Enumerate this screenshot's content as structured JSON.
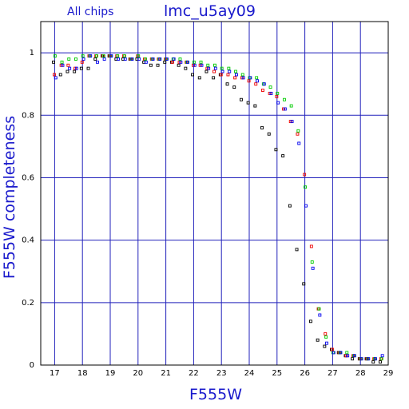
{
  "header": {
    "left": "All chips",
    "title": "lmc_u5ay09"
  },
  "chart_data": {
    "type": "scatter",
    "xlabel": "F555W",
    "ylabel": "F555W completeness",
    "xlim": [
      16.5,
      29
    ],
    "ylim": [
      0,
      1.1
    ],
    "x_ticks": [
      "17",
      "18",
      "19",
      "20",
      "21",
      "22",
      "23",
      "24",
      "25",
      "26",
      "27",
      "28",
      "29"
    ],
    "y_ticks": [
      "0",
      "0.2",
      "0.4",
      "0.6",
      "0.8",
      "1"
    ],
    "grid": true,
    "series": [
      {
        "color": "#000000",
        "points": [
          [
            17.0,
            0.97
          ],
          [
            17.25,
            0.93
          ],
          [
            17.5,
            0.94
          ],
          [
            17.75,
            0.94
          ],
          [
            18.0,
            0.95
          ],
          [
            18.25,
            0.95
          ],
          [
            18.5,
            0.98
          ],
          [
            18.75,
            0.99
          ],
          [
            19.0,
            0.99
          ],
          [
            19.25,
            0.98
          ],
          [
            19.5,
            0.98
          ],
          [
            19.75,
            0.98
          ],
          [
            20.0,
            0.98
          ],
          [
            20.25,
            0.97
          ],
          [
            20.5,
            0.96
          ],
          [
            20.75,
            0.96
          ],
          [
            21.0,
            0.97
          ],
          [
            21.25,
            0.97
          ],
          [
            21.5,
            0.96
          ],
          [
            21.75,
            0.95
          ],
          [
            22.0,
            0.93
          ],
          [
            22.25,
            0.92
          ],
          [
            22.5,
            0.94
          ],
          [
            22.75,
            0.92
          ],
          [
            23.0,
            0.93
          ],
          [
            23.25,
            0.9
          ],
          [
            23.5,
            0.89
          ],
          [
            23.75,
            0.85
          ],
          [
            24.0,
            0.84
          ],
          [
            24.25,
            0.83
          ],
          [
            24.5,
            0.76
          ],
          [
            24.75,
            0.74
          ],
          [
            25.0,
            0.69
          ],
          [
            25.25,
            0.67
          ],
          [
            25.5,
            0.51
          ],
          [
            25.75,
            0.37
          ],
          [
            26.0,
            0.26
          ],
          [
            26.25,
            0.14
          ],
          [
            26.5,
            0.08
          ],
          [
            26.75,
            0.06
          ],
          [
            27.0,
            0.05
          ],
          [
            27.25,
            0.04
          ],
          [
            27.5,
            0.03
          ],
          [
            27.75,
            0.02
          ],
          [
            28.0,
            0.02
          ],
          [
            28.25,
            0.02
          ],
          [
            28.5,
            0.01
          ],
          [
            28.75,
            0.01
          ]
        ]
      },
      {
        "color": "#ee0000",
        "points": [
          [
            17.0,
            0.93
          ],
          [
            17.25,
            0.96
          ],
          [
            17.5,
            0.96
          ],
          [
            17.75,
            0.95
          ],
          [
            18.0,
            0.97
          ],
          [
            18.25,
            0.99
          ],
          [
            18.5,
            0.99
          ],
          [
            18.75,
            0.99
          ],
          [
            19.0,
            0.99
          ],
          [
            19.25,
            0.99
          ],
          [
            19.5,
            0.99
          ],
          [
            19.75,
            0.98
          ],
          [
            20.0,
            0.99
          ],
          [
            20.25,
            0.98
          ],
          [
            20.5,
            0.98
          ],
          [
            20.75,
            0.98
          ],
          [
            21.0,
            0.98
          ],
          [
            21.25,
            0.97
          ],
          [
            21.5,
            0.97
          ],
          [
            21.75,
            0.97
          ],
          [
            22.0,
            0.96
          ],
          [
            22.25,
            0.96
          ],
          [
            22.5,
            0.95
          ],
          [
            22.75,
            0.94
          ],
          [
            23.0,
            0.93
          ],
          [
            23.25,
            0.93
          ],
          [
            23.5,
            0.92
          ],
          [
            23.75,
            0.92
          ],
          [
            24.0,
            0.91
          ],
          [
            24.25,
            0.9
          ],
          [
            24.5,
            0.88
          ],
          [
            24.75,
            0.87
          ],
          [
            25.0,
            0.86
          ],
          [
            25.25,
            0.82
          ],
          [
            25.5,
            0.78
          ],
          [
            25.75,
            0.74
          ],
          [
            26.0,
            0.61
          ],
          [
            26.25,
            0.38
          ],
          [
            26.5,
            0.18
          ],
          [
            26.75,
            0.1
          ],
          [
            27.0,
            0.05
          ],
          [
            27.25,
            0.04
          ],
          [
            27.5,
            0.03
          ],
          [
            27.75,
            0.03
          ],
          [
            28.0,
            0.02
          ],
          [
            28.25,
            0.02
          ],
          [
            28.5,
            0.02
          ],
          [
            28.75,
            0.02
          ]
        ]
      },
      {
        "color": "#00cc00",
        "points": [
          [
            17.0,
            0.99
          ],
          [
            17.25,
            0.97
          ],
          [
            17.5,
            0.98
          ],
          [
            17.75,
            0.98
          ],
          [
            18.0,
            0.99
          ],
          [
            18.25,
            0.99
          ],
          [
            18.5,
            0.99
          ],
          [
            18.75,
            0.99
          ],
          [
            19.0,
            0.99
          ],
          [
            19.25,
            0.99
          ],
          [
            19.5,
            0.99
          ],
          [
            19.75,
            0.98
          ],
          [
            20.0,
            0.99
          ],
          [
            20.25,
            0.98
          ],
          [
            20.5,
            0.98
          ],
          [
            20.75,
            0.98
          ],
          [
            21.0,
            0.98
          ],
          [
            21.25,
            0.98
          ],
          [
            21.5,
            0.98
          ],
          [
            21.75,
            0.97
          ],
          [
            22.0,
            0.97
          ],
          [
            22.25,
            0.97
          ],
          [
            22.5,
            0.96
          ],
          [
            22.75,
            0.96
          ],
          [
            23.0,
            0.95
          ],
          [
            23.25,
            0.95
          ],
          [
            23.5,
            0.94
          ],
          [
            23.75,
            0.93
          ],
          [
            24.0,
            0.92
          ],
          [
            24.25,
            0.92
          ],
          [
            24.5,
            0.9
          ],
          [
            24.75,
            0.89
          ],
          [
            25.0,
            0.87
          ],
          [
            25.25,
            0.85
          ],
          [
            25.5,
            0.83
          ],
          [
            25.75,
            0.75
          ],
          [
            26.0,
            0.57
          ],
          [
            26.25,
            0.33
          ],
          [
            26.5,
            0.18
          ],
          [
            26.75,
            0.09
          ],
          [
            27.0,
            0.04
          ],
          [
            27.25,
            0.04
          ],
          [
            27.5,
            0.04
          ],
          [
            27.75,
            0.03
          ],
          [
            28.0,
            0.02
          ],
          [
            28.25,
            0.02
          ],
          [
            28.5,
            0.02
          ],
          [
            28.75,
            0.02
          ]
        ]
      },
      {
        "color": "#0000ee",
        "points": [
          [
            17.0,
            0.92
          ],
          [
            17.25,
            0.96
          ],
          [
            17.5,
            0.95
          ],
          [
            17.75,
            0.95
          ],
          [
            18.0,
            0.98
          ],
          [
            18.25,
            0.99
          ],
          [
            18.5,
            0.97
          ],
          [
            18.75,
            0.98
          ],
          [
            19.0,
            0.99
          ],
          [
            19.25,
            0.98
          ],
          [
            19.5,
            0.98
          ],
          [
            19.75,
            0.98
          ],
          [
            20.0,
            0.98
          ],
          [
            20.25,
            0.97
          ],
          [
            20.5,
            0.98
          ],
          [
            20.75,
            0.98
          ],
          [
            21.0,
            0.98
          ],
          [
            21.25,
            0.98
          ],
          [
            21.5,
            0.97
          ],
          [
            21.75,
            0.97
          ],
          [
            22.0,
            0.96
          ],
          [
            22.25,
            0.96
          ],
          [
            22.5,
            0.95
          ],
          [
            22.75,
            0.95
          ],
          [
            23.0,
            0.94
          ],
          [
            23.25,
            0.94
          ],
          [
            23.5,
            0.93
          ],
          [
            23.75,
            0.92
          ],
          [
            24.0,
            0.92
          ],
          [
            24.25,
            0.91
          ],
          [
            24.5,
            0.9
          ],
          [
            24.75,
            0.87
          ],
          [
            25.0,
            0.84
          ],
          [
            25.25,
            0.82
          ],
          [
            25.5,
            0.78
          ],
          [
            25.75,
            0.71
          ],
          [
            26.0,
            0.51
          ],
          [
            26.25,
            0.31
          ],
          [
            26.5,
            0.16
          ],
          [
            26.75,
            0.07
          ],
          [
            27.0,
            0.04
          ],
          [
            27.25,
            0.04
          ],
          [
            27.5,
            0.03
          ],
          [
            27.75,
            0.03
          ],
          [
            28.0,
            0.02
          ],
          [
            28.25,
            0.02
          ],
          [
            28.5,
            0.02
          ],
          [
            28.75,
            0.03
          ]
        ]
      }
    ]
  }
}
